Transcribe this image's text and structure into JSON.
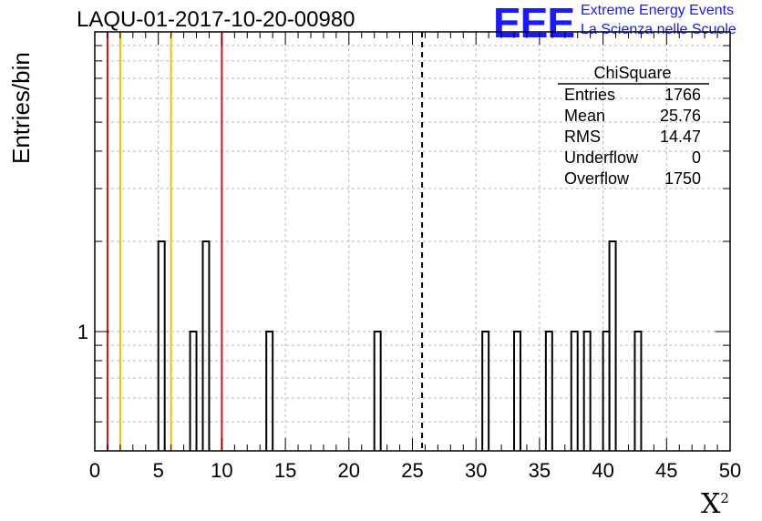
{
  "header": {
    "title": "LAQU-01-2017-10-20-00980",
    "logo_mark": "EEE",
    "logo_line_1": "Extreme Energy Events",
    "logo_line_2": "La Scienza nelle Scuole"
  },
  "colors": {
    "logo": "#1a1aff",
    "red_line": "#dd1111",
    "yellow_line": "#f0c000",
    "grid": "#b8b8b8",
    "histogram": "#000000"
  },
  "stats": {
    "name": "ChiSquare",
    "rows": [
      {
        "label": "Entries",
        "value": "1766"
      },
      {
        "label": "Mean",
        "value": "25.76"
      },
      {
        "label": "RMS",
        "value": "14.47"
      },
      {
        "label": "Underflow",
        "value": "0"
      },
      {
        "label": "Overflow",
        "value": "1750"
      }
    ]
  },
  "chart_data": {
    "type": "histogram",
    "title": "LAQU-01-2017-10-20-00980",
    "xlabel": "X",
    "xlabel_superscript": "2",
    "ylabel": "Entries/bin",
    "xlim": [
      0,
      50
    ],
    "ylim": [
      0.4,
      10
    ],
    "y_scale": "log",
    "bin_width": 0.5,
    "x_ticks": [
      0,
      5,
      10,
      15,
      20,
      25,
      30,
      35,
      40,
      45,
      50
    ],
    "y_tick_labels": [
      {
        "value": 1,
        "label": "1"
      }
    ],
    "bins": [
      {
        "x": 5.0,
        "count": 2
      },
      {
        "x": 7.5,
        "count": 1
      },
      {
        "x": 8.5,
        "count": 2
      },
      {
        "x": 13.5,
        "count": 1
      },
      {
        "x": 22.0,
        "count": 1
      },
      {
        "x": 30.5,
        "count": 1
      },
      {
        "x": 33.0,
        "count": 1
      },
      {
        "x": 35.5,
        "count": 1
      },
      {
        "x": 37.5,
        "count": 1
      },
      {
        "x": 38.5,
        "count": 1
      },
      {
        "x": 40.0,
        "count": 1
      },
      {
        "x": 40.5,
        "count": 2
      },
      {
        "x": 42.5,
        "count": 1
      }
    ],
    "vertical_lines": [
      {
        "x": 1,
        "color": "red",
        "style": "solid"
      },
      {
        "x": 2,
        "color": "yellow",
        "style": "solid"
      },
      {
        "x": 6,
        "color": "yellow",
        "style": "solid"
      },
      {
        "x": 10,
        "color": "red",
        "style": "solid"
      },
      {
        "x": 25.76,
        "color": "black",
        "style": "dashed"
      }
    ]
  }
}
